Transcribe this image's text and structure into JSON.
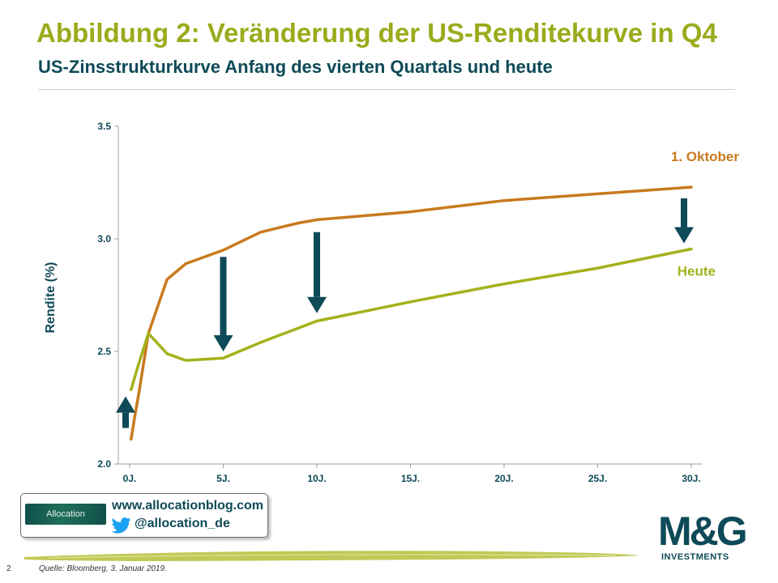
{
  "header": {
    "title": "Abbildung 2: Veränderung der US-Renditekurve in Q4",
    "subtitle": "US-Zinsstrukturkurve Anfang des vierten Quartals und heute"
  },
  "colors": {
    "title": "#9aab1c",
    "subtitle": "#0e4a57",
    "axis_text": "#0e4a57",
    "oktober": "#c87a1e",
    "heute": "#a3b21b",
    "arrow": "#0e4a57"
  },
  "chart_data": {
    "type": "line",
    "xlabel": "",
    "ylabel": "Rendite (%)",
    "ylim": [
      2.0,
      3.5
    ],
    "xlim": [
      0,
      30
    ],
    "x_ticks": [
      0,
      5,
      10,
      15,
      20,
      25,
      30
    ],
    "x_tick_labels": [
      "0J.",
      "5J.",
      "10J.",
      "15J.",
      "20J.",
      "25J.",
      "30J."
    ],
    "y_ticks": [
      2.0,
      2.5,
      3.0,
      3.5
    ],
    "y_tick_labels": [
      "2.0",
      "2.5",
      "3.0",
      "3.5"
    ],
    "grid": false,
    "legend": "inline labels at right end of lines",
    "series": [
      {
        "name": "1. Oktober",
        "color": "#c87a1e",
        "points": [
          [
            0.08,
            2.11
          ],
          [
            0.25,
            2.2
          ],
          [
            0.5,
            2.32
          ],
          [
            1,
            2.58
          ],
          [
            2,
            2.82
          ],
          [
            3,
            2.89
          ],
          [
            5,
            2.95
          ],
          [
            7,
            3.03
          ],
          [
            8,
            3.05
          ],
          [
            9,
            3.07
          ],
          [
            10,
            3.085
          ],
          [
            15,
            3.12
          ],
          [
            20,
            3.17
          ],
          [
            25,
            3.2
          ],
          [
            30,
            3.23
          ]
        ]
      },
      {
        "name": "Heute",
        "color": "#a3b21b",
        "points": [
          [
            0.08,
            2.33
          ],
          [
            0.25,
            2.38
          ],
          [
            0.5,
            2.45
          ],
          [
            1,
            2.58
          ],
          [
            2,
            2.49
          ],
          [
            3,
            2.46
          ],
          [
            5,
            2.47
          ],
          [
            7,
            2.54
          ],
          [
            10,
            2.635
          ],
          [
            15,
            2.72
          ],
          [
            20,
            2.8
          ],
          [
            25,
            2.87
          ],
          [
            30,
            2.955
          ]
        ]
      }
    ],
    "annotations": [
      {
        "type": "arrow",
        "direction": "up",
        "x": 0,
        "from": 2.16,
        "to": 2.3
      },
      {
        "type": "arrow",
        "direction": "down",
        "x": 5,
        "from": 2.92,
        "to": 2.5
      },
      {
        "type": "arrow",
        "direction": "down",
        "x": 10,
        "from": 3.03,
        "to": 2.67
      },
      {
        "type": "arrow",
        "direction": "down",
        "x": 30,
        "from": 3.18,
        "to": 2.98
      }
    ]
  },
  "footer": {
    "blog_url": "www.allocationblog.com",
    "twitter_handle": "@allocation_de",
    "allocation_logo_text": "Allocation",
    "mg_logo_mark": "M&G",
    "mg_logo_sub": "INVESTMENTS",
    "page_number": "2",
    "source": "Quelle: Bloomberg, 3. Januar 2019."
  }
}
